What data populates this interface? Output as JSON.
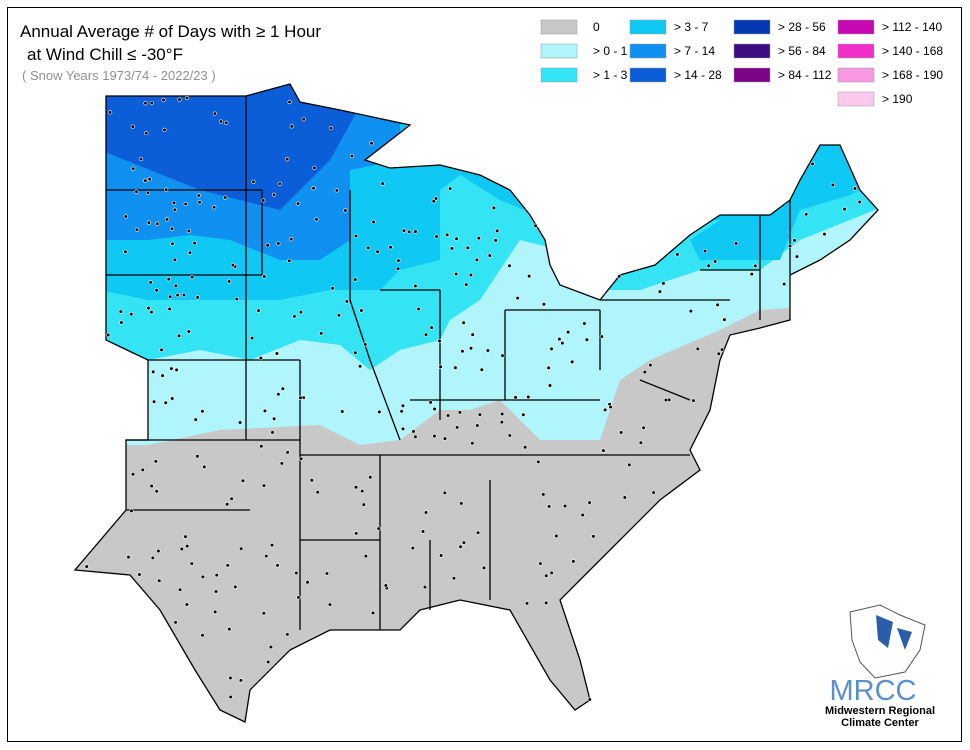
{
  "header": {
    "title_lines": [
      "Annual Average # of Days with ≥ 1 Hour",
      "at Wind Chill ≤ -30°F"
    ],
    "subtitle": "( Snow Years 1973/74 - 2022/23 )"
  },
  "legend": {
    "items": [
      {
        "label": "0",
        "color": "#c8c8c8"
      },
      {
        "label": "> 0 - 1",
        "color": "#b0f4fc"
      },
      {
        "label": "> 1 - 3",
        "color": "#34e4f4"
      },
      {
        "label": "> 3 - 7",
        "color": "#10c8f4"
      },
      {
        "label": "> 7 - 14",
        "color": "#1090f0"
      },
      {
        "label": "> 14 - 28",
        "color": "#0c5ed8"
      },
      {
        "label": "> 28 - 56",
        "color": "#0438b0"
      },
      {
        "label": "> 56 - 84",
        "color": "#3c0c80"
      },
      {
        "label": "> 84 - 112",
        "color": "#7c0488"
      },
      {
        "label": "> 112 - 140",
        "color": "#c808b0"
      },
      {
        "label": "> 140 - 168",
        "color": "#f030c8"
      },
      {
        "label": "> 168 - 190",
        "color": "#f898e0"
      },
      {
        "label": "> 190",
        "color": "#fcc8ec"
      }
    ]
  },
  "logo": {
    "acronym": "MRCC",
    "lines": [
      "Midwestern Regional",
      "Climate Center"
    ]
  }
}
